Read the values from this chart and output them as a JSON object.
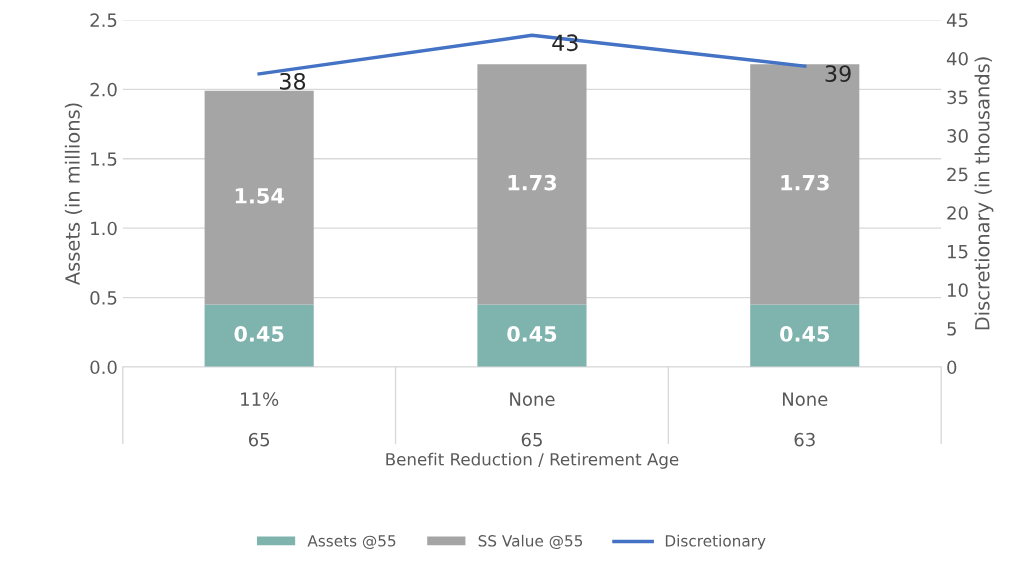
{
  "chart_data": {
    "type": "bar",
    "stacked": true,
    "xlabel": "Benefit Reduction / Retirement Age",
    "ylabel": "Assets (in millions)",
    "y2label": "Discretionary (in thousands)",
    "categories": [
      "11%\n\n65",
      "None\n\n65",
      "None\n\n63"
    ],
    "series": [
      {
        "name": "Assets @55",
        "color": "#7fb3ad",
        "values": [
          0.45,
          0.45,
          0.45
        ]
      },
      {
        "name": "SS Value @55",
        "color": "#a5a5a5",
        "values": [
          1.54,
          1.73,
          1.73
        ]
      },
      {
        "name": "Discretionary",
        "type": "line",
        "axis": "y2",
        "color": "#4472c4",
        "values": [
          38,
          43,
          39
        ]
      }
    ],
    "data_labels": true,
    "ylim": [
      0,
      2.5
    ],
    "yticks": [
      {
        "value": 0,
        "label": "0.0"
      },
      {
        "value": 0.5,
        "label": "0.5"
      },
      {
        "value": 1,
        "label": "1.0"
      },
      {
        "value": 1.5,
        "label": "1.5"
      },
      {
        "value": 2,
        "label": "2.0"
      },
      {
        "value": 2.5,
        "label": "2.5"
      }
    ],
    "y2lim": [
      0,
      45
    ],
    "y2ticks": [
      0,
      5,
      10,
      15,
      20,
      25,
      30,
      35,
      40,
      45
    ],
    "grid": "y",
    "legend": "bottom",
    "marker": "none",
    "line_style": "solid"
  }
}
